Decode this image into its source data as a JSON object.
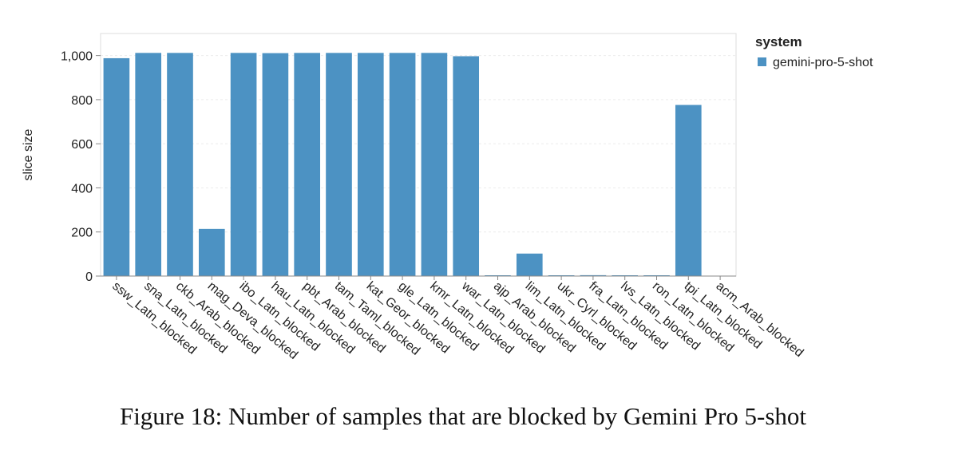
{
  "chart_data": {
    "type": "bar",
    "categories": [
      "ssw_Latn_blocked",
      "sna_Latn_blocked",
      "ckb_Arab_blocked",
      "mag_Deva_blocked",
      "ibo_Latn_blocked",
      "hau_Latn_blocked",
      "pbt_Arab_blocked",
      "tam_Taml_blocked",
      "kat_Geor_blocked",
      "gle_Latn_blocked",
      "kmr_Latn_blocked",
      "war_Latn_blocked",
      "ajp_Arab_blocked",
      "lim_Latn_blocked",
      "ukr_Cyrl_blocked",
      "fra_Latn_blocked",
      "lvs_Latn_blocked",
      "ron_Latn_blocked",
      "tpi_Latn_blocked",
      "acm_Arab_blocked"
    ],
    "series": [
      {
        "name": "gemini-pro-5-shot",
        "color": "#4c92c3",
        "values": [
          988,
          1012,
          1012,
          214,
          1012,
          1011,
          1012,
          1012,
          1012,
          1012,
          1012,
          997,
          1,
          102,
          1,
          4,
          1,
          3,
          776,
          0
        ]
      }
    ],
    "ylabel": "slice size",
    "xlabel": "",
    "ylim": [
      0,
      1100
    ],
    "yticks": [
      0,
      200,
      400,
      600,
      800,
      1000
    ],
    "ytick_labels": [
      "0",
      "200",
      "400",
      "600",
      "800",
      "1,000"
    ],
    "grid": true,
    "legend": {
      "title": "system",
      "position": "top-right"
    }
  },
  "caption": "Figure 18: Number of samples that are blocked by Gemini Pro 5-shot"
}
